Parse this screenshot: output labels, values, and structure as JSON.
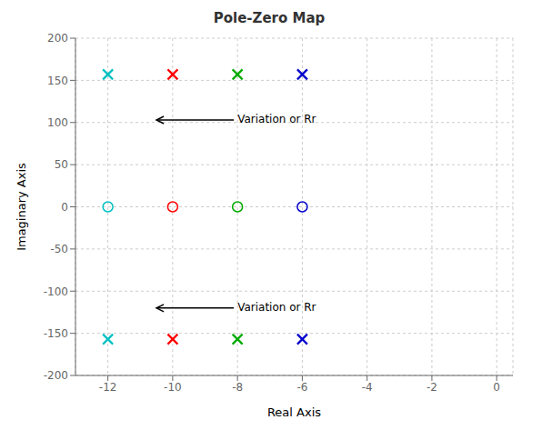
{
  "chart_data": {
    "type": "scatter",
    "title": "Pole-Zero Map",
    "x_label": "Real Axis",
    "y_label": "Imaginary Axis",
    "xlim": [
      -13,
      0.5
    ],
    "ylim": [
      -200,
      200
    ],
    "xticks": [
      -12,
      -10,
      -8,
      -6,
      -4,
      -2,
      0
    ],
    "yticks": [
      -200,
      -150,
      -100,
      -50,
      0,
      50,
      100,
      150,
      200
    ],
    "grid": true,
    "series": [
      {
        "color": "#00C0C0",
        "marker": "x",
        "x": [
          -12,
          -12
        ],
        "values": [
          157,
          -157
        ]
      },
      {
        "color": "#00C0C0",
        "marker": "o",
        "x": [
          -12
        ],
        "values": [
          0
        ]
      },
      {
        "color": "#FF0000",
        "marker": "x",
        "x": [
          -10,
          -10
        ],
        "values": [
          157,
          -157
        ]
      },
      {
        "color": "#FF0000",
        "marker": "o",
        "x": [
          -10
        ],
        "values": [
          0
        ]
      },
      {
        "color": "#00AA00",
        "marker": "x",
        "x": [
          -8,
          -8
        ],
        "values": [
          157,
          -157
        ]
      },
      {
        "color": "#00AA00",
        "marker": "o",
        "x": [
          -8
        ],
        "values": [
          0
        ]
      },
      {
        "color": "#0000CC",
        "marker": "x",
        "x": [
          -6,
          -6
        ],
        "values": [
          157,
          -157
        ]
      },
      {
        "color": "#0000CC",
        "marker": "o",
        "x": [
          -6
        ],
        "values": [
          0
        ]
      }
    ],
    "annotations": [
      {
        "text": "Variation or Rr",
        "x": -8.0,
        "y": 103,
        "arrow_x": -10.5,
        "arrow_y": 103
      },
      {
        "text": "Variation or Rr",
        "x": -8.0,
        "y": -120,
        "arrow_x": -10.5,
        "arrow_y": -120
      }
    ]
  }
}
